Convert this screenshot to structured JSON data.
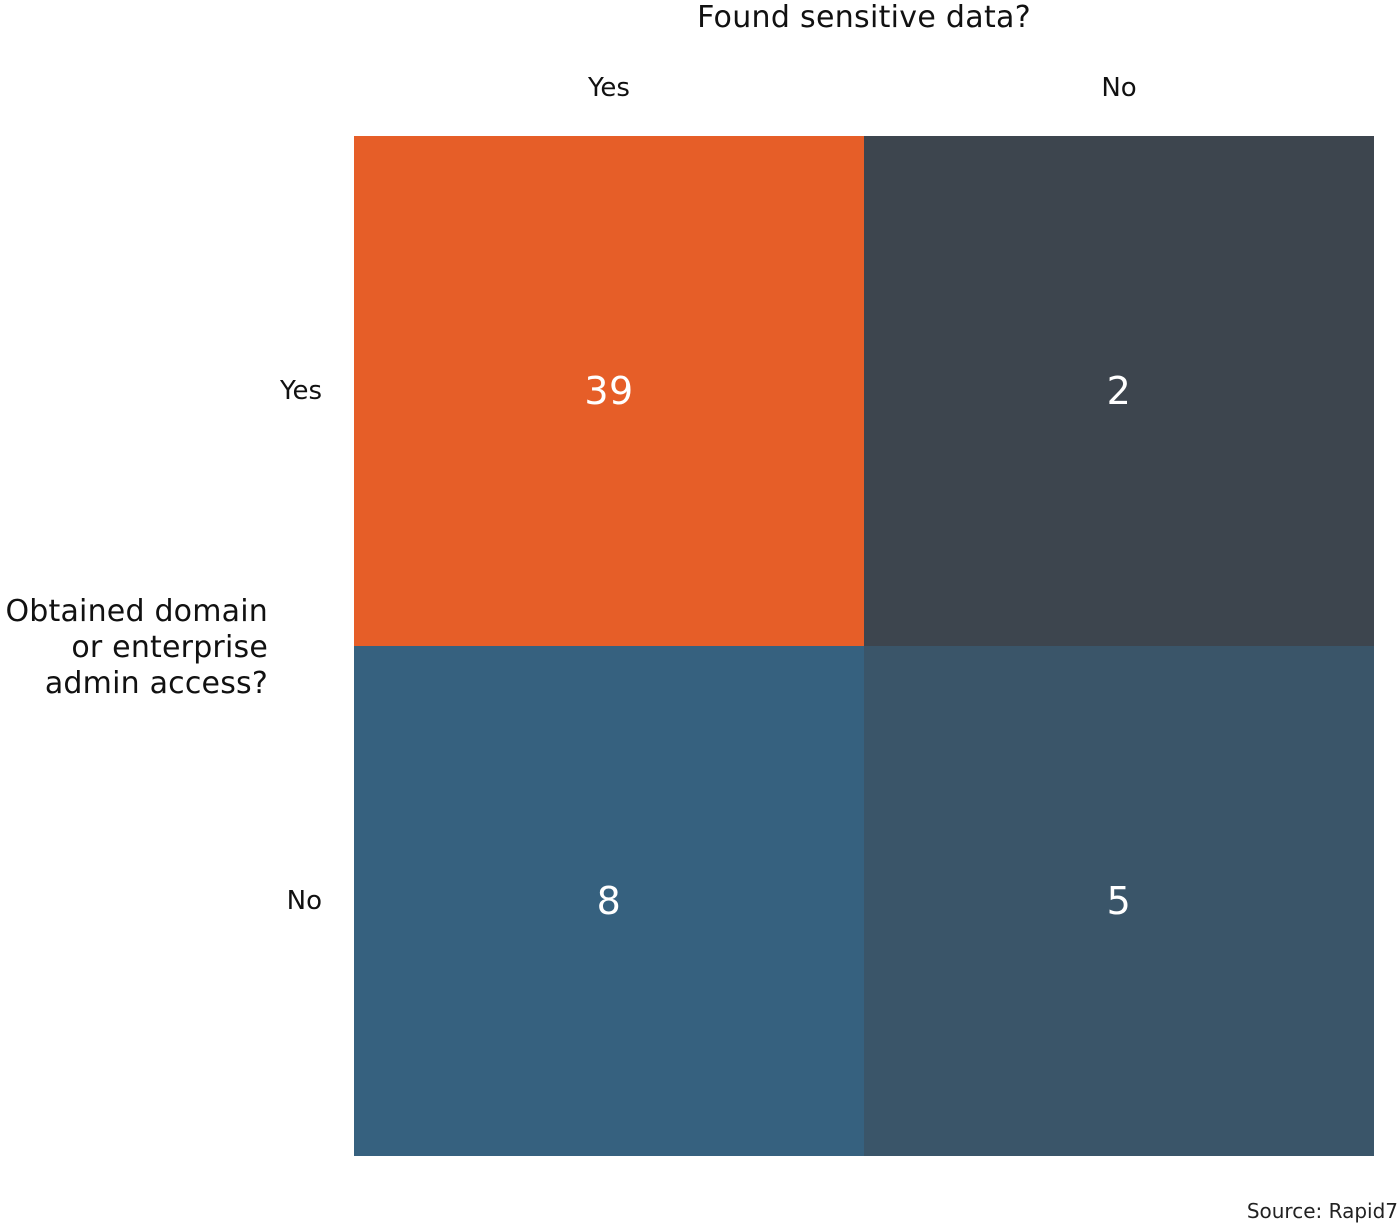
{
  "chart_data": {
    "type": "heatmap",
    "x_title": "Found sensitive data?",
    "y_title": [
      "Obtained domain",
      "or enterprise",
      "admin access?"
    ],
    "columns": [
      "Yes",
      "No"
    ],
    "rows": [
      "Yes",
      "No"
    ],
    "values": [
      [
        39,
        2
      ],
      [
        8,
        5
      ]
    ],
    "colors": [
      [
        "#E65E28",
        "#3D454E"
      ],
      [
        "#36617F",
        "#3A5569"
      ]
    ],
    "value_text_color": "#FFFFFF",
    "source": "Source: Rapid7"
  }
}
